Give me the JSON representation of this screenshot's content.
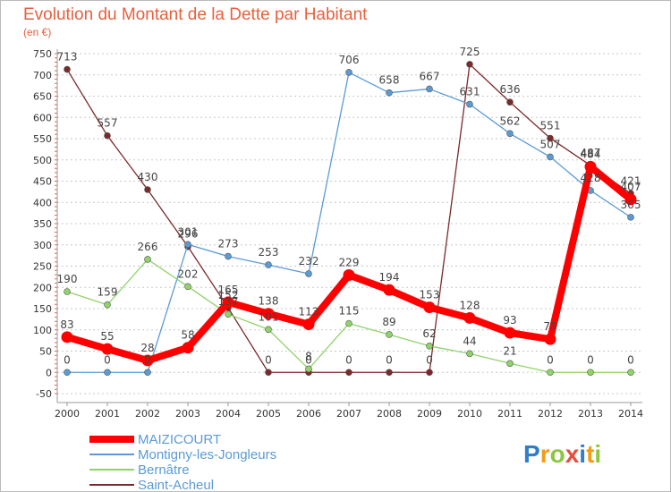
{
  "chart_data": {
    "type": "line",
    "title": "Evolution du Montant de la Dette par Habitant",
    "subtitle": "(en €)",
    "xlabel": "",
    "ylabel": "",
    "x": [
      "2000",
      "2001",
      "2002",
      "2003",
      "2004",
      "2005",
      "2006",
      "2007",
      "2008",
      "2009",
      "2010",
      "2011",
      "2012",
      "2013",
      "2014"
    ],
    "yticks": [
      750,
      700,
      650,
      600,
      550,
      500,
      450,
      400,
      350,
      300,
      250,
      200,
      150,
      100,
      50,
      0,
      -50
    ],
    "ylim": [
      -50,
      750
    ],
    "grid": "horizontal-dashed",
    "legend_position": "bottom-left",
    "series": [
      {
        "name": "MAIZICOURT",
        "color": "#ff0000",
        "values": [
          83,
          55,
          28,
          58,
          165,
          138,
          113,
          229,
          194,
          153,
          128,
          93,
          78,
          484,
          407
        ]
      },
      {
        "name": "Montigny-les-Jongleurs",
        "color": "#5b9bd5",
        "values": [
          0,
          0,
          0,
          301,
          273,
          253,
          232,
          706,
          658,
          667,
          631,
          562,
          507,
          428,
          365
        ]
      },
      {
        "name": "Bernâtre",
        "color": "#8fd36a",
        "values": [
          190,
          159,
          266,
          202,
          137,
          101,
          8,
          115,
          89,
          62,
          44,
          21,
          0,
          0,
          0
        ]
      },
      {
        "name": "Saint-Acheul",
        "color": "#7b2a2a",
        "values": [
          713,
          557,
          430,
          296,
          152,
          0,
          0,
          0,
          0,
          0,
          725,
          636,
          551,
          487,
          421
        ]
      }
    ]
  },
  "brand": {
    "text": "Proxiti",
    "colors": [
      "#2f7ec8",
      "#f39c12",
      "#8dc63f",
      "#e84c3d"
    ]
  }
}
